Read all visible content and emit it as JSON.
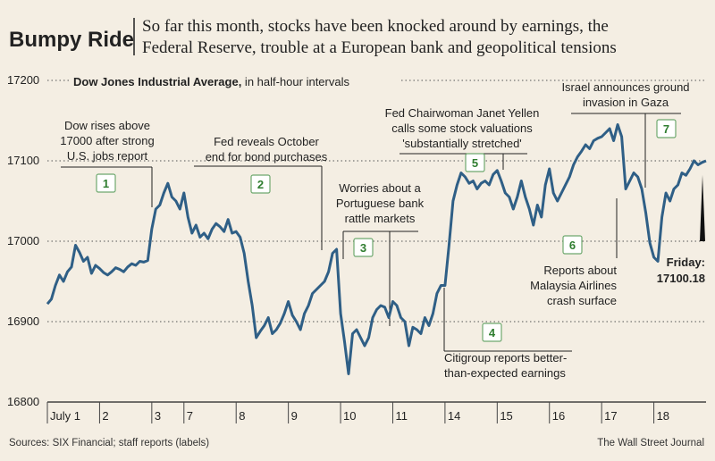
{
  "header": {
    "title": "Bumpy Ride",
    "subtitle_line1": "So far this month, stocks have been knocked around by earnings, the",
    "subtitle_line2": "Federal Reserve, trouble at a European bank and geopolitical tensions"
  },
  "chart_data": {
    "type": "line",
    "title_bold": "Dow Jones Industrial Average,",
    "title_rest": " in half-hour intervals",
    "ylim": [
      16800,
      17200
    ],
    "yticks": [
      16800,
      16900,
      17000,
      17100,
      17200
    ],
    "yticklabels": [
      "16800",
      "16900",
      "17000",
      "17100",
      "17200"
    ],
    "days": [
      {
        "label": "July 1",
        "start": 0,
        "end": 13
      },
      {
        "label": "2",
        "start": 13,
        "end": 26
      },
      {
        "label": "3",
        "start": 26,
        "end": 34
      },
      {
        "label": "7",
        "start": 34,
        "end": 47
      },
      {
        "label": "8",
        "start": 47,
        "end": 60
      },
      {
        "label": "9",
        "start": 60,
        "end": 73
      },
      {
        "label": "10",
        "start": 73,
        "end": 86
      },
      {
        "label": "11",
        "start": 86,
        "end": 99
      },
      {
        "label": "14",
        "start": 99,
        "end": 112
      },
      {
        "label": "15",
        "start": 112,
        "end": 125
      },
      {
        "label": "16",
        "start": 125,
        "end": 138
      },
      {
        "label": "17",
        "start": 138,
        "end": 151
      },
      {
        "label": "18",
        "start": 151,
        "end": 164
      }
    ],
    "x_max": 164,
    "series": [
      {
        "name": "Dow Jones Industrial Average",
        "color": "#2f5f86",
        "values": [
          16922,
          16928,
          16945,
          16958,
          16950,
          16962,
          16968,
          16995,
          16986,
          16975,
          16980,
          16960,
          16970,
          16966,
          16961,
          16958,
          16962,
          16967,
          16965,
          16962,
          16968,
          16972,
          16970,
          16975,
          16974,
          16976,
          17015,
          17040,
          17045,
          17060,
          17072,
          17055,
          17050,
          17040,
          17060,
          17030,
          17010,
          17020,
          17005,
          17010,
          17003,
          17015,
          17022,
          17018,
          17012,
          17027,
          17010,
          17012,
          17005,
          16985,
          16950,
          16920,
          16880,
          16888,
          16895,
          16905,
          16885,
          16890,
          16898,
          16910,
          16925,
          16908,
          16900,
          16890,
          16910,
          16920,
          16935,
          16940,
          16945,
          16950,
          16962,
          16985,
          16990,
          16910,
          16875,
          16835,
          16885,
          16890,
          16880,
          16870,
          16880,
          16905,
          16915,
          16920,
          16918,
          16905,
          16925,
          16920,
          16905,
          16900,
          16870,
          16893,
          16890,
          16885,
          16905,
          16895,
          16910,
          16935,
          16945,
          16945,
          16995,
          17050,
          17070,
          17085,
          17080,
          17072,
          17075,
          17065,
          17072,
          17075,
          17070,
          17083,
          17088,
          17075,
          17060,
          17055,
          17040,
          17055,
          17075,
          17055,
          17040,
          17020,
          17045,
          17030,
          17070,
          17090,
          17060,
          17050,
          17060,
          17070,
          17080,
          17095,
          17105,
          17112,
          17120,
          17115,
          17125,
          17128,
          17130,
          17135,
          17140,
          17125,
          17145,
          17130,
          17065,
          17075,
          17085,
          17080,
          17065,
          17035,
          16998,
          16980,
          16975,
          17030,
          17060,
          17050,
          17065,
          17070,
          17085,
          17082,
          17090,
          17100,
          17095,
          17098,
          17100
        ]
      }
    ],
    "end_value_label": "Friday:",
    "end_value": "17100.18",
    "annotations": [
      {
        "number": "1",
        "lines": [
          "Dow rises above",
          "17000 after strong",
          "U.S. jobs report"
        ]
      },
      {
        "number": "2",
        "lines": [
          "Fed reveals October",
          "end for bond purchases"
        ]
      },
      {
        "number": "3",
        "lines": [
          "Worries about a",
          "Portuguese bank",
          "rattle markets"
        ]
      },
      {
        "number": "4",
        "lines": [
          "Citigroup reports better-",
          "than-expected earnings"
        ]
      },
      {
        "number": "5",
        "lines": [
          "Fed Chairwoman Janet Yellen",
          "calls some stock valuations",
          "'substantially stretched'"
        ]
      },
      {
        "number": "6",
        "lines": [
          "Reports about",
          "Malaysia Airlines",
          "crash surface"
        ]
      },
      {
        "number": "7",
        "lines": [
          "Israel announces ground",
          "invasion in Gaza"
        ]
      }
    ]
  },
  "footer": {
    "sources": "Sources: SIX Financial; staff reports (labels)",
    "credit": "The Wall Street Journal"
  }
}
